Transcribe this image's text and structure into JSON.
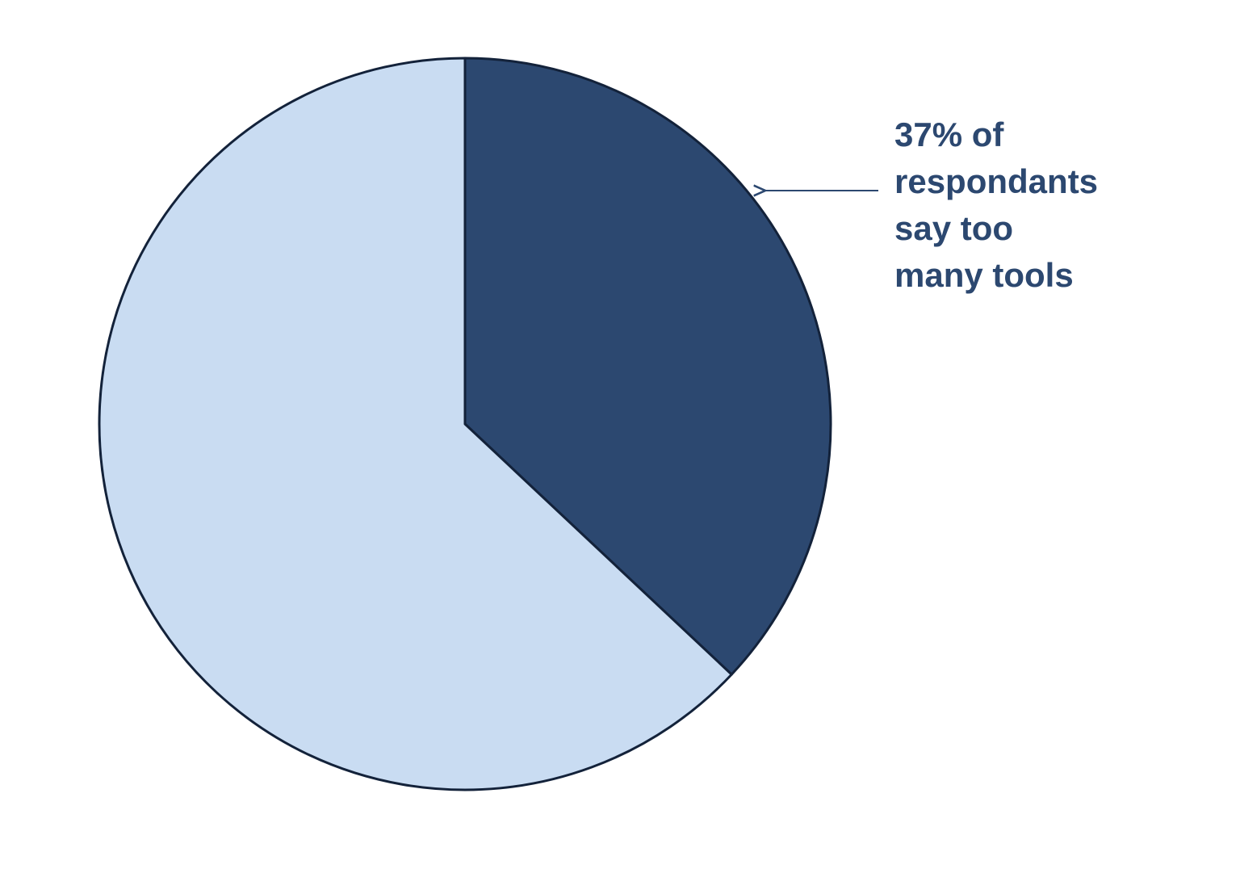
{
  "chart_data": {
    "type": "pie",
    "categories": [
      null,
      null
    ],
    "values": [
      37,
      63
    ],
    "colors": [
      "#2c4870",
      "#c9dcf2"
    ],
    "edge_color": "#13223a",
    "annotation": "37% of respondants say too many tools"
  }
}
